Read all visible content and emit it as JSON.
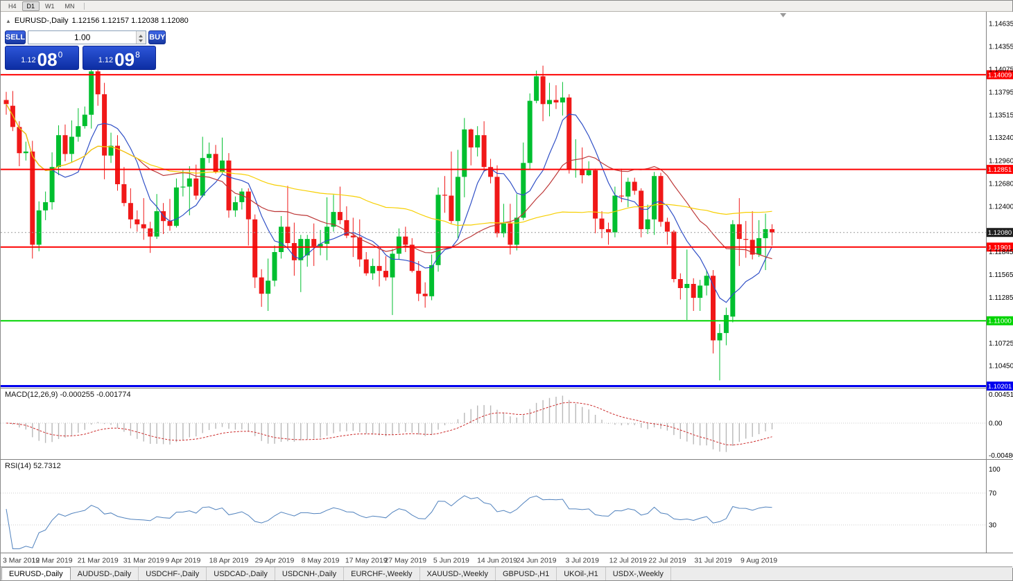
{
  "toolbar": {
    "timeframes": [
      {
        "label": "H4",
        "active": false
      },
      {
        "label": "D1",
        "active": true
      },
      {
        "label": "W1",
        "active": false
      },
      {
        "label": "MN",
        "active": false
      }
    ]
  },
  "chart_header": {
    "marker": "▲",
    "title": "EURUSD-,Daily",
    "ohlc": "1.12156 1.12157 1.12038 1.12080"
  },
  "trade_panel": {
    "sell_label": "SELL",
    "buy_label": "BUY",
    "volume": "1.00",
    "sell_small": "1.12",
    "sell_big": "08",
    "sell_sup": "0",
    "buy_small": "1.12",
    "buy_big": "09",
    "buy_sup": "8"
  },
  "price_scale": {
    "labels": [
      "1.14635",
      "1.14355",
      "1.14075",
      "1.13795",
      "1.13515",
      "1.13240",
      "1.12960",
      "1.12680",
      "1.12400",
      "1.11845",
      "1.11565",
      "1.11285",
      "1.10725",
      "1.10450"
    ]
  },
  "hlines": [
    {
      "price": 1.14009,
      "label": "1.14009",
      "color": "#fe0000",
      "width": 2
    },
    {
      "price": 1.12851,
      "label": "1.12851",
      "color": "#fe0000",
      "width": 2
    },
    {
      "price": 1.11901,
      "label": "1.11901",
      "color": "#fe0000",
      "width": 2
    },
    {
      "price": 1.11,
      "label": "1.11000",
      "color": "#00d400",
      "width": 2
    },
    {
      "price": 1.10201,
      "label": "1.10201",
      "color": "#0000ee",
      "width": 3
    }
  ],
  "current_price": {
    "price": 1.1208,
    "label": "1.12080",
    "color": "#1f1f1f"
  },
  "macd": {
    "label_full": "MACD(12,26,9) -0.000255 -0.001774",
    "scale_top": "0.004517",
    "scale_zero": "0.00",
    "scale_bottom": "-0.004806",
    "colors": {
      "histogram": "#b8b8b8",
      "signal": "#cc2b2b"
    }
  },
  "rsi": {
    "label_full": "RSI(14) 52.7312",
    "levels": [
      "100",
      "70",
      "30"
    ]
  },
  "x_labels": [
    {
      "text": "3 Mar 2019",
      "i": 0
    },
    {
      "text": "12 Mar 2019",
      "i": 7
    },
    {
      "text": "21 Mar 2019",
      "i": 14
    },
    {
      "text": "31 Mar 2019",
      "i": 21
    },
    {
      "text": "9 Apr 2019",
      "i": 27
    },
    {
      "text": "18 Apr 2019",
      "i": 34
    },
    {
      "text": "29 Apr 2019",
      "i": 41
    },
    {
      "text": "8 May 2019",
      "i": 48
    },
    {
      "text": "17 May 2019",
      "i": 55
    },
    {
      "text": "27 May 2019",
      "i": 61
    },
    {
      "text": "5 Jun 2019",
      "i": 68
    },
    {
      "text": "14 Jun 2019",
      "i": 75
    },
    {
      "text": "24 Jun 2019",
      "i": 81
    },
    {
      "text": "3 Jul 2019",
      "i": 88
    },
    {
      "text": "12 Jul 2019",
      "i": 95
    },
    {
      "text": "22 Jul 2019",
      "i": 101
    },
    {
      "text": "31 Jul 2019",
      "i": 108
    },
    {
      "text": "9 Aug 2019",
      "i": 115
    }
  ],
  "tabs": [
    {
      "label": "EURUSD-,Daily",
      "active": true
    },
    {
      "label": "AUDUSD-,Daily",
      "active": false
    },
    {
      "label": "USDCHF-,Daily",
      "active": false
    },
    {
      "label": "USDCAD-,Daily",
      "active": false
    },
    {
      "label": "USDCNH-,Daily",
      "active": false
    },
    {
      "label": "EURCHF-,Weekly",
      "active": false
    },
    {
      "label": "XAUUSD-,Weekly",
      "active": false
    },
    {
      "label": "GBPUSD-,H1",
      "active": false
    },
    {
      "label": "UKOil-,H1",
      "active": false
    },
    {
      "label": "USDX-,Weekly",
      "active": false
    }
  ],
  "chart_data": {
    "type": "candlestick",
    "symbol": "EURUSD-",
    "timeframe": "Daily",
    "price_range": [
      1.1019,
      1.1478
    ],
    "ma_periods": [
      8,
      21,
      55
    ],
    "colors": {
      "bull": "#00bf2f",
      "bear": "#f01818",
      "ma_fast": "#2f4fc6",
      "ma_mid": "#bd3737",
      "ma_slow": "#f7cf00",
      "rsi": "#4f81bd"
    },
    "candles": [
      [
        1.137,
        1.138,
        1.1352,
        1.1365
      ],
      [
        1.1363,
        1.1381,
        1.1332,
        1.1337
      ],
      [
        1.1337,
        1.1344,
        1.1289,
        1.1305
      ],
      [
        1.1305,
        1.1319,
        1.1296,
        1.1307
      ],
      [
        1.1307,
        1.132,
        1.1176,
        1.1193
      ],
      [
        1.1193,
        1.1246,
        1.1185,
        1.1235
      ],
      [
        1.1235,
        1.1258,
        1.1223,
        1.1245
      ],
      [
        1.1245,
        1.1306,
        1.1236,
        1.1288
      ],
      [
        1.1288,
        1.1339,
        1.1278,
        1.1327
      ],
      [
        1.1327,
        1.134,
        1.1295,
        1.1304
      ],
      [
        1.1304,
        1.1345,
        1.1294,
        1.1325
      ],
      [
        1.1325,
        1.136,
        1.1319,
        1.1338
      ],
      [
        1.1338,
        1.1362,
        1.1335,
        1.1352
      ],
      [
        1.1352,
        1.141,
        1.1335,
        1.1405
      ],
      [
        1.1405,
        1.1411,
        1.1363,
        1.1377
      ],
      [
        1.1377,
        1.1391,
        1.1273,
        1.1302
      ],
      [
        1.1302,
        1.133,
        1.1293,
        1.1314
      ],
      [
        1.1314,
        1.1327,
        1.1259,
        1.1267
      ],
      [
        1.1267,
        1.1288,
        1.124,
        1.1244
      ],
      [
        1.1244,
        1.1262,
        1.1213,
        1.1224
      ],
      [
        1.1224,
        1.1235,
        1.1209,
        1.1218
      ],
      [
        1.1218,
        1.125,
        1.1199,
        1.1213
      ],
      [
        1.1213,
        1.1221,
        1.1183,
        1.1203
      ],
      [
        1.1203,
        1.1255,
        1.12,
        1.1234
      ],
      [
        1.1234,
        1.1244,
        1.1206,
        1.1222
      ],
      [
        1.1222,
        1.1249,
        1.121,
        1.1216
      ],
      [
        1.1216,
        1.1274,
        1.1214,
        1.1263
      ],
      [
        1.1263,
        1.1284,
        1.1252,
        1.1264
      ],
      [
        1.1264,
        1.1289,
        1.1229,
        1.1274
      ],
      [
        1.1274,
        1.1291,
        1.1248,
        1.1253
      ],
      [
        1.1253,
        1.1325,
        1.1251,
        1.1299
      ],
      [
        1.1299,
        1.1318,
        1.1293,
        1.1304
      ],
      [
        1.1304,
        1.1315,
        1.128,
        1.1282
      ],
      [
        1.1282,
        1.1324,
        1.128,
        1.1296
      ],
      [
        1.1296,
        1.1305,
        1.1226,
        1.1235
      ],
      [
        1.1235,
        1.1252,
        1.1227,
        1.1245
      ],
      [
        1.1245,
        1.1262,
        1.1236,
        1.1258
      ],
      [
        1.1258,
        1.1262,
        1.1192,
        1.1224
      ],
      [
        1.1224,
        1.123,
        1.114,
        1.1153
      ],
      [
        1.1153,
        1.1163,
        1.1117,
        1.1133
      ],
      [
        1.1133,
        1.1176,
        1.1112,
        1.1149
      ],
      [
        1.1149,
        1.1192,
        1.1142,
        1.1184
      ],
      [
        1.1184,
        1.1228,
        1.1176,
        1.1215
      ],
      [
        1.1215,
        1.1265,
        1.1188,
        1.1195
      ],
      [
        1.1195,
        1.122,
        1.1155,
        1.1174
      ],
      [
        1.1174,
        1.1205,
        1.1135,
        1.12
      ],
      [
        1.118,
        1.1205,
        1.1166,
        1.12
      ],
      [
        1.12,
        1.1219,
        1.1167,
        1.1191
      ],
      [
        1.1191,
        1.1211,
        1.118,
        1.1194
      ],
      [
        1.1194,
        1.1251,
        1.1174,
        1.1215
      ],
      [
        1.1215,
        1.1254,
        1.1209,
        1.1233
      ],
      [
        1.1233,
        1.1264,
        1.1218,
        1.1223
      ],
      [
        1.1223,
        1.124,
        1.1201,
        1.1204
      ],
      [
        1.1204,
        1.1226,
        1.1178,
        1.1202
      ],
      [
        1.1202,
        1.1224,
        1.1166,
        1.1175
      ],
      [
        1.1175,
        1.1184,
        1.1155,
        1.1158
      ],
      [
        1.1158,
        1.1176,
        1.115,
        1.1167
      ],
      [
        1.1167,
        1.1188,
        1.1142,
        1.1161
      ],
      [
        1.1161,
        1.1179,
        1.1149,
        1.1153
      ],
      [
        1.1153,
        1.1188,
        1.1107,
        1.1182
      ],
      [
        1.1182,
        1.1213,
        1.1175,
        1.1203
      ],
      [
        1.1203,
        1.1215,
        1.1184,
        1.1193
      ],
      [
        1.1193,
        1.1201,
        1.1159,
        1.1161
      ],
      [
        1.1161,
        1.1173,
        1.1124,
        1.1133
      ],
      [
        1.1133,
        1.1147,
        1.1116,
        1.113
      ],
      [
        1.113,
        1.1181,
        1.1125,
        1.1168
      ],
      [
        1.1168,
        1.1263,
        1.116,
        1.1254
      ],
      [
        1.1254,
        1.1277,
        1.1232,
        1.1253
      ],
      [
        1.1253,
        1.1307,
        1.1219,
        1.1222
      ],
      [
        1.1222,
        1.1309,
        1.1201,
        1.1276
      ],
      [
        1.1276,
        1.1348,
        1.1251,
        1.1334
      ],
      [
        1.1334,
        1.1335,
        1.129,
        1.1312
      ],
      [
        1.1312,
        1.1338,
        1.1301,
        1.1327
      ],
      [
        1.1327,
        1.1344,
        1.1282,
        1.1288
      ],
      [
        1.1288,
        1.1298,
        1.1268,
        1.1276
      ],
      [
        1.1276,
        1.129,
        1.1202,
        1.1207
      ],
      [
        1.1207,
        1.1243,
        1.1202,
        1.1219
      ],
      [
        1.1219,
        1.1243,
        1.1181,
        1.1193
      ],
      [
        1.1193,
        1.1255,
        1.1186,
        1.1226
      ],
      [
        1.1226,
        1.1318,
        1.1223,
        1.1293
      ],
      [
        1.1293,
        1.1378,
        1.1285,
        1.1369
      ],
      [
        1.1369,
        1.1406,
        1.1366,
        1.1399
      ],
      [
        1.1399,
        1.1412,
        1.1344,
        1.1365
      ],
      [
        1.1365,
        1.1391,
        1.135,
        1.137
      ],
      [
        1.137,
        1.1388,
        1.1359,
        1.1367
      ],
      [
        1.1367,
        1.1392,
        1.1351,
        1.1373
      ],
      [
        1.1373,
        1.1377,
        1.128,
        1.1285
      ],
      [
        1.1285,
        1.1322,
        1.1275,
        1.1285
      ],
      [
        1.1285,
        1.1312,
        1.1268,
        1.1278
      ],
      [
        1.1278,
        1.1295,
        1.1277,
        1.1284
      ],
      [
        1.1284,
        1.1286,
        1.1207,
        1.1225
      ],
      [
        1.1225,
        1.1234,
        1.1201,
        1.1212
      ],
      [
        1.1212,
        1.122,
        1.1193,
        1.1208
      ],
      [
        1.1208,
        1.1264,
        1.1202,
        1.1253
      ],
      [
        1.1253,
        1.1286,
        1.1245,
        1.1252
      ],
      [
        1.1252,
        1.1275,
        1.1239,
        1.127
      ],
      [
        1.127,
        1.1275,
        1.1254,
        1.1259
      ],
      [
        1.1259,
        1.1262,
        1.1202,
        1.1212
      ],
      [
        1.1212,
        1.1242,
        1.1206,
        1.1224
      ],
      [
        1.1224,
        1.1282,
        1.1205,
        1.1277
      ],
      [
        1.1277,
        1.1281,
        1.1215,
        1.1221
      ],
      [
        1.1221,
        1.1226,
        1.1193,
        1.1209
      ],
      [
        1.1209,
        1.1211,
        1.1147,
        1.1151
      ],
      [
        1.1151,
        1.1158,
        1.1126,
        1.114
      ],
      [
        1.114,
        1.1187,
        1.1101,
        1.1145
      ],
      [
        1.1145,
        1.1152,
        1.1112,
        1.1128
      ],
      [
        1.1128,
        1.115,
        1.1112,
        1.1143
      ],
      [
        1.1143,
        1.1162,
        1.1131,
        1.1155
      ],
      [
        1.1155,
        1.1162,
        1.106,
        1.1076
      ],
      [
        1.1076,
        1.1096,
        1.1027,
        1.1085
      ],
      [
        1.1085,
        1.1116,
        1.107,
        1.1107
      ],
      [
        1.1105,
        1.1223,
        1.1098,
        1.1218
      ],
      [
        1.1218,
        1.125,
        1.1167,
        1.12
      ],
      [
        1.12,
        1.1222,
        1.1177,
        1.1199
      ],
      [
        1.1199,
        1.1234,
        1.1175,
        1.1181
      ],
      [
        1.1181,
        1.1223,
        1.1178,
        1.1201
      ],
      [
        1.1201,
        1.1231,
        1.1162,
        1.1212
      ],
      [
        1.1212,
        1.1218,
        1.1192,
        1.1208
      ]
    ]
  }
}
